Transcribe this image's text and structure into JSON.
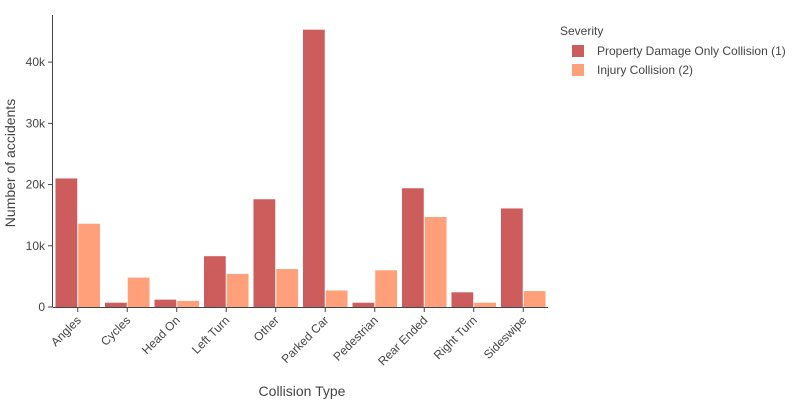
{
  "chart_data": {
    "type": "bar",
    "categories": [
      "Angles",
      "Cycles",
      "Head On",
      "Left Turn",
      "Other",
      "Parked Car",
      "Pedestrian",
      "Rear Ended",
      "Right Turn",
      "Sideswipe"
    ],
    "series": [
      {
        "name": "Property Damage Only Collision (1)",
        "color": "#cd5c5c",
        "values": [
          21000,
          700,
          1200,
          8300,
          17600,
          45300,
          700,
          19400,
          2400,
          16100
        ]
      },
      {
        "name": "Injury Collision (2)",
        "color": "#ffa07a",
        "values": [
          13600,
          4800,
          1000,
          5400,
          6200,
          2700,
          6000,
          14700,
          700,
          2600
        ]
      }
    ],
    "xlabel": "Collision Type",
    "ylabel": "Number of accidents",
    "ylim": [
      0,
      47700
    ],
    "yticks": [
      {
        "value": 0,
        "label": "0"
      },
      {
        "value": 10000,
        "label": "10k"
      },
      {
        "value": 20000,
        "label": "20k"
      },
      {
        "value": 30000,
        "label": "30k"
      },
      {
        "value": 40000,
        "label": "40k"
      }
    ],
    "grid": false,
    "legend_title": "Severity",
    "legend_position": "top-right"
  }
}
